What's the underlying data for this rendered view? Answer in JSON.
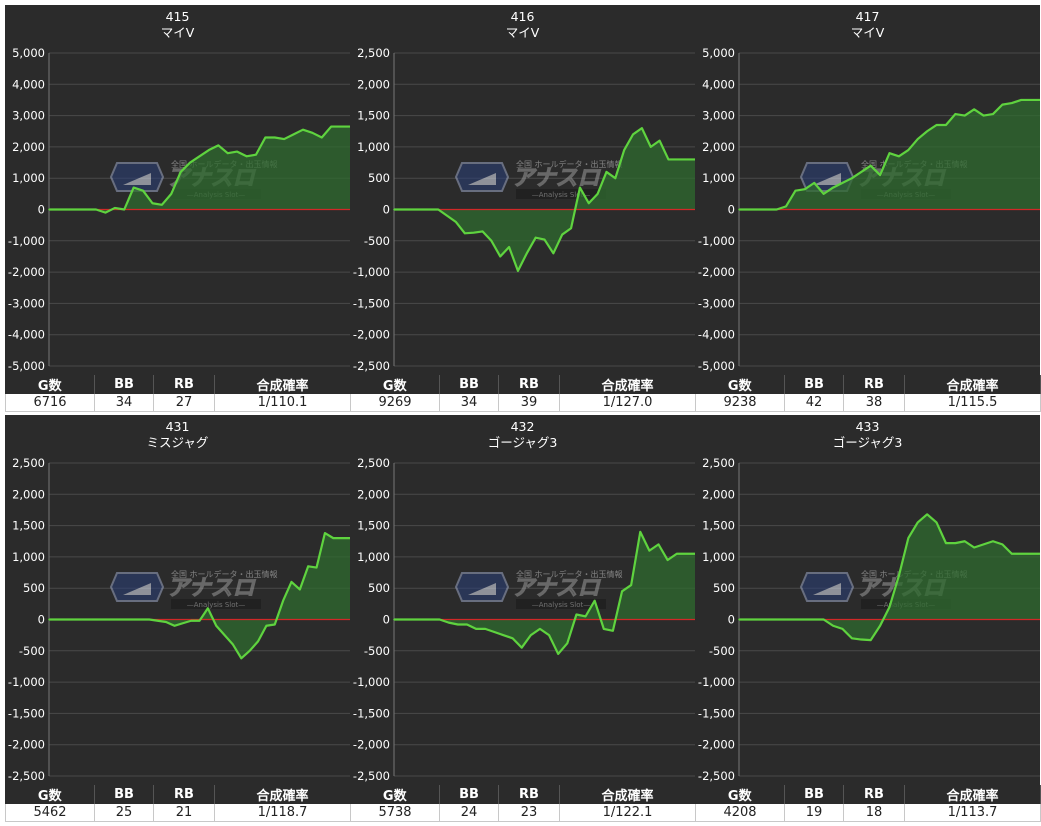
{
  "table_headers": [
    "G数",
    "BB",
    "RB",
    "合成確率"
  ],
  "watermark": {
    "brand": "アナスロ",
    "tagline": "全国 ホールデータ・出玉情報",
    "sub": "—Analysis Slot—"
  },
  "colors": {
    "panel_bg": "#2b2b2b",
    "line": "#5fd33f",
    "fill": "#2f6b2f",
    "zero": "#d22828",
    "grid": "#4a4a4a"
  },
  "chart_data": [
    {
      "type": "area",
      "number": "415",
      "machine": "マイV",
      "ylim": [
        -5000,
        5000
      ],
      "yticks": [
        "5,000",
        "4,000",
        "3,000",
        "2,000",
        "1,000",
        "0",
        "-1,000",
        "-2,000",
        "-3,000",
        "-4,000",
        "-5,000"
      ],
      "values": [
        0,
        0,
        0,
        0,
        0,
        0,
        -100,
        50,
        0,
        700,
        600,
        200,
        150,
        500,
        1200,
        1500,
        1700,
        1900,
        2050,
        1800,
        1850,
        1700,
        1750,
        2300,
        2300,
        2250,
        2400,
        2550,
        2450,
        2300,
        2650,
        2650,
        2650
      ],
      "stats": {
        "games": "6716",
        "bb": "34",
        "rb": "27",
        "rate": "1/110.1"
      }
    },
    {
      "type": "area",
      "number": "416",
      "machine": "マイV",
      "ylim": [
        -2500,
        2500
      ],
      "yticks": [
        "2,500",
        "2,000",
        "1,500",
        "1,000",
        "500",
        "0",
        "-500",
        "-1,000",
        "-1,500",
        "-2,000",
        "-2,500"
      ],
      "values": [
        0,
        0,
        0,
        0,
        0,
        0,
        -100,
        -200,
        -380,
        -370,
        -350,
        -500,
        -750,
        -600,
        -980,
        -700,
        -450,
        -480,
        -700,
        -400,
        -300,
        350,
        100,
        250,
        600,
        500,
        950,
        1200,
        1300,
        1000,
        1100,
        800,
        800,
        800,
        800
      ],
      "stats": {
        "games": "9269",
        "bb": "34",
        "rb": "39",
        "rate": "1/127.0"
      }
    },
    {
      "type": "area",
      "number": "417",
      "machine": "マイV",
      "ylim": [
        -5000,
        5000
      ],
      "yticks": [
        "5,000",
        "4,000",
        "3,000",
        "2,000",
        "1,000",
        "0",
        "-1,000",
        "-2,000",
        "-3,000",
        "-4,000",
        "-5,000"
      ],
      "values": [
        0,
        0,
        0,
        0,
        0,
        100,
        600,
        650,
        850,
        500,
        700,
        850,
        1000,
        1200,
        1400,
        1100,
        1800,
        1700,
        1900,
        2250,
        2500,
        2700,
        2700,
        3050,
        3000,
        3200,
        3000,
        3050,
        3350,
        3400,
        3500,
        3500,
        3500
      ],
      "stats": {
        "games": "9238",
        "bb": "42",
        "rb": "38",
        "rate": "1/115.5"
      }
    },
    {
      "type": "area",
      "number": "431",
      "machine": "ミスジャグ",
      "ylim": [
        -2500,
        2500
      ],
      "yticks": [
        "2,500",
        "2,000",
        "1,500",
        "1,000",
        "500",
        "0",
        "-500",
        "-1,000",
        "-1,500",
        "-2,000",
        "-2,500"
      ],
      "values": [
        0,
        0,
        0,
        0,
        0,
        0,
        0,
        0,
        0,
        0,
        0,
        0,
        0,
        -20,
        -40,
        -100,
        -60,
        -20,
        -20,
        180,
        -100,
        -250,
        -400,
        -620,
        -500,
        -350,
        -100,
        -80,
        300,
        600,
        480,
        850,
        830,
        1380,
        1300,
        1300,
        1300
      ],
      "stats": {
        "games": "5462",
        "bb": "25",
        "rb": "21",
        "rate": "1/118.7"
      }
    },
    {
      "type": "area",
      "number": "432",
      "machine": "ゴージャグ3",
      "ylim": [
        -2500,
        2500
      ],
      "yticks": [
        "2,500",
        "2,000",
        "1,500",
        "1,000",
        "500",
        "0",
        "-500",
        "-1,000",
        "-1,500",
        "-2,000",
        "-2,500"
      ],
      "values": [
        0,
        0,
        0,
        0,
        0,
        0,
        -50,
        -80,
        -80,
        -150,
        -150,
        -200,
        -250,
        -300,
        -450,
        -250,
        -150,
        -250,
        -550,
        -380,
        80,
        50,
        300,
        -150,
        -180,
        450,
        550,
        1400,
        1100,
        1200,
        950,
        1050,
        1050,
        1050
      ],
      "stats": {
        "games": "5738",
        "bb": "24",
        "rb": "23",
        "rate": "1/122.1"
      }
    },
    {
      "type": "area",
      "number": "433",
      "machine": "ゴージャグ3",
      "ylim": [
        -2500,
        2500
      ],
      "yticks": [
        "2,500",
        "2,000",
        "1,500",
        "1,000",
        "500",
        "0",
        "-500",
        "-1,000",
        "-1,500",
        "-2,000",
        "-2,500"
      ],
      "values": [
        0,
        0,
        0,
        0,
        0,
        0,
        0,
        0,
        0,
        0,
        -100,
        -150,
        -300,
        -320,
        -330,
        -100,
        200,
        700,
        1300,
        1550,
        1680,
        1550,
        1220,
        1220,
        1250,
        1150,
        1200,
        1250,
        1200,
        1050,
        1050,
        1050,
        1050
      ],
      "stats": {
        "games": "4208",
        "bb": "19",
        "rb": "18",
        "rate": "1/113.7"
      }
    }
  ]
}
